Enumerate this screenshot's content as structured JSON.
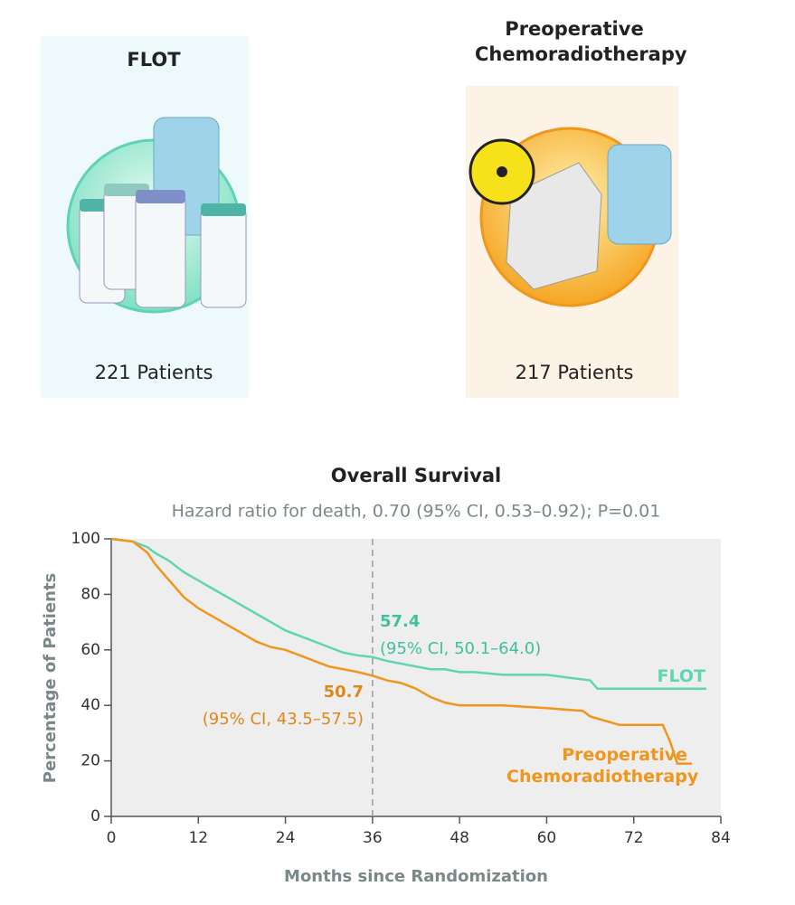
{
  "arms": [
    {
      "name": "FLOT",
      "patients": "221 Patients"
    },
    {
      "name": "Preoperative Chemoradiotherapy",
      "patients": "217 Patients"
    }
  ],
  "chart_data": {
    "type": "line",
    "title": "Overall Survival",
    "subtitle": "Hazard ratio for death, 0.70 (95% CI, 0.53–0.92); P=0.01",
    "xlabel": "Months since Randomization",
    "ylabel": "Percentage of Patients",
    "xlim": [
      0,
      84
    ],
    "xticks": [
      0,
      12,
      24,
      36,
      48,
      60,
      72,
      84
    ],
    "ylim": [
      0,
      100
    ],
    "yticks": [
      0,
      20,
      40,
      60,
      80,
      100
    ],
    "vline": 36,
    "series": [
      {
        "name": "FLOT",
        "color": "#5ed6b4",
        "x": [
          0,
          3,
          5,
          6,
          8,
          10,
          12,
          14,
          16,
          18,
          20,
          22,
          24,
          26,
          28,
          30,
          32,
          34,
          36,
          38,
          40,
          42,
          44,
          46,
          48,
          50,
          54,
          60,
          66,
          67,
          82
        ],
        "values": [
          100,
          99,
          97,
          95,
          92,
          88,
          85,
          82,
          79,
          76,
          73,
          70,
          67,
          65,
          63,
          61,
          59,
          58,
          57.4,
          56,
          55,
          54,
          53,
          53,
          52,
          52,
          51,
          51,
          49,
          46,
          46
        ]
      },
      {
        "name": "Preoperative Chemoradiotherapy",
        "color": "#f0961c",
        "x": [
          0,
          3,
          4,
          5,
          6,
          8,
          10,
          12,
          14,
          16,
          18,
          20,
          22,
          24,
          26,
          28,
          30,
          32,
          34,
          36,
          38,
          40,
          42,
          44,
          46,
          48,
          54,
          60,
          65,
          66,
          70,
          76,
          77,
          78,
          80
        ],
        "values": [
          100,
          99,
          97,
          95,
          91,
          85,
          79,
          75,
          72,
          69,
          66,
          63,
          61,
          60,
          58,
          56,
          54,
          53,
          52,
          50.7,
          49,
          48,
          46,
          43,
          41,
          40,
          40,
          39,
          38,
          36,
          33,
          33,
          27,
          19,
          19
        ]
      }
    ],
    "annotations": [
      {
        "text": "57.4"
      },
      {
        "text": "(95% CI, 50.1–64.0)"
      },
      {
        "text": "50.7"
      },
      {
        "text": "(95% CI, 43.5–57.5)"
      }
    ]
  }
}
